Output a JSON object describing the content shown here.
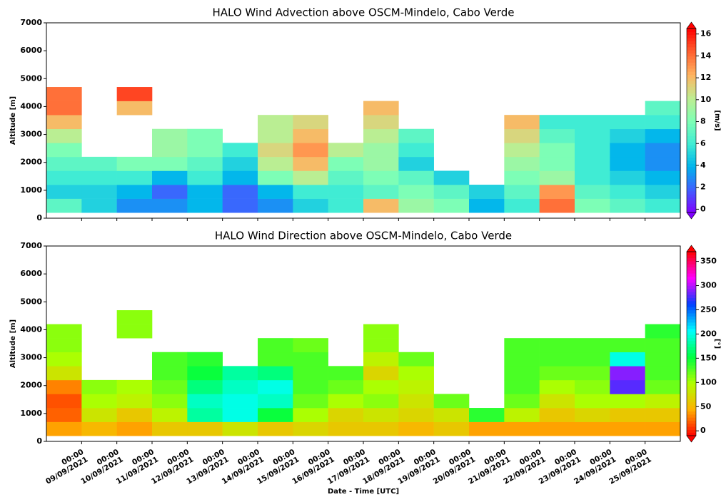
{
  "chart_data": [
    {
      "type": "heatmap",
      "title": "HALO Wind Advection above OSCM-Mindelo, Cabo Verde",
      "ylabel": "Altitude [m]",
      "colorbar_label": "[m/s]",
      "xlim": [
        "2021-09-08T00:00",
        "2021-09-26T00:00"
      ],
      "xticks": [
        "2021-09-09T00:00",
        "2021-09-10T00:00",
        "2021-09-11T00:00",
        "2021-09-12T00:00",
        "2021-09-13T00:00",
        "2021-09-14T00:00",
        "2021-09-15T00:00",
        "2021-09-16T00:00",
        "2021-09-17T00:00",
        "2021-09-18T00:00",
        "2021-09-19T00:00",
        "2021-09-20T00:00",
        "2021-09-21T00:00",
        "2021-09-22T00:00",
        "2021-09-23T00:00",
        "2021-09-24T00:00",
        "2021-09-25T00:00"
      ],
      "ylim": [
        0,
        7000
      ],
      "yticks": [
        0,
        1000,
        2000,
        3000,
        4000,
        5000,
        6000,
        7000
      ],
      "x": [
        "2021-09-08T00:00",
        "2021-09-09T00:00",
        "2021-09-10T00:00",
        "2021-09-11T00:00",
        "2021-09-12T00:00",
        "2021-09-13T00:00",
        "2021-09-14T00:00",
        "2021-09-15T00:00",
        "2021-09-16T00:00",
        "2021-09-17T00:00",
        "2021-09-18T00:00",
        "2021-09-19T00:00",
        "2021-09-20T00:00",
        "2021-09-21T00:00",
        "2021-09-22T00:00",
        "2021-09-23T00:00",
        "2021-09-24T00:00",
        "2021-09-25T00:00",
        "2021-09-26T00:00"
      ],
      "y": [
        200,
        700,
        1200,
        1700,
        2200,
        2700,
        3200,
        3700,
        4200,
        4700
      ],
      "z": [
        [
          7,
          5,
          3,
          3,
          4,
          2,
          3,
          5,
          6,
          12,
          9,
          8,
          4,
          6,
          14,
          8,
          7,
          6
        ],
        [
          5,
          5,
          4,
          2,
          4,
          2,
          4,
          6,
          6,
          7,
          8,
          7,
          5,
          7,
          13,
          7,
          6,
          5
        ],
        [
          6,
          6,
          6,
          4,
          6,
          4,
          8,
          10,
          7,
          8,
          7,
          5,
          null,
          8,
          9,
          6,
          5,
          4
        ],
        [
          7,
          7,
          8,
          8,
          7,
          5,
          10,
          12,
          8,
          9,
          5,
          null,
          null,
          9,
          8,
          6,
          4,
          3
        ],
        [
          8,
          null,
          null,
          9,
          8,
          6,
          11,
          13,
          10,
          9,
          6,
          null,
          null,
          10,
          8,
          6,
          4,
          3
        ],
        [
          10,
          null,
          null,
          9,
          8,
          null,
          10,
          12,
          null,
          10,
          7,
          null,
          null,
          11,
          7,
          6,
          5,
          4
        ],
        [
          12,
          null,
          null,
          null,
          null,
          null,
          10,
          11,
          null,
          11,
          null,
          null,
          null,
          12,
          6,
          6,
          6,
          6
        ],
        [
          14,
          null,
          12,
          null,
          null,
          null,
          null,
          null,
          null,
          12,
          null,
          null,
          null,
          null,
          null,
          null,
          null,
          7
        ],
        [
          14,
          null,
          15,
          null,
          null,
          null,
          null,
          null,
          null,
          null,
          null,
          null,
          null,
          null,
          null,
          null,
          null,
          null
        ]
      ],
      "clim": [
        -0.3,
        16.5
      ],
      "cticks": [
        0,
        2,
        4,
        6,
        8,
        10,
        12,
        14,
        16
      ],
      "colormap": [
        "#8000ff",
        "#3f60ff",
        "#00b4ec",
        "#40ecd4",
        "#80ffb4",
        "#c0ec90",
        "#ffb360",
        "#ff6030",
        "#ff0000"
      ]
    },
    {
      "type": "heatmap",
      "title": "HALO Wind Direction above OSCM-Mindelo, Cabo Verde",
      "ylabel": "Altitude [m]",
      "xlabel": "Date - Time [UTC]",
      "colorbar_label": "[°]",
      "xlim": [
        "2021-09-08T00:00",
        "2021-09-26T00:00"
      ],
      "xticks": [
        {
          "value": "2021-09-09T00:00",
          "label": "00:00\n09/09/2021"
        },
        {
          "value": "2021-09-10T00:00",
          "label": "00:00\n10/09/2021"
        },
        {
          "value": "2021-09-11T00:00",
          "label": "00:00\n11/09/2021"
        },
        {
          "value": "2021-09-12T00:00",
          "label": "00:00\n12/09/2021"
        },
        {
          "value": "2021-09-13T00:00",
          "label": "00:00\n13/09/2021"
        },
        {
          "value": "2021-09-14T00:00",
          "label": "00:00\n14/09/2021"
        },
        {
          "value": "2021-09-15T00:00",
          "label": "00:00\n15/09/2021"
        },
        {
          "value": "2021-09-16T00:00",
          "label": "00:00\n16/09/2021"
        },
        {
          "value": "2021-09-17T00:00",
          "label": "00:00\n17/09/2021"
        },
        {
          "value": "2021-09-18T00:00",
          "label": "00:00\n18/09/2021"
        },
        {
          "value": "2021-09-19T00:00",
          "label": "00:00\n19/09/2021"
        },
        {
          "value": "2021-09-20T00:00",
          "label": "00:00\n20/09/2021"
        },
        {
          "value": "2021-09-21T00:00",
          "label": "00:00\n21/09/2021"
        },
        {
          "value": "2021-09-22T00:00",
          "label": "00:00\n22/09/2021"
        },
        {
          "value": "2021-09-23T00:00",
          "label": "00:00\n23/09/2021"
        },
        {
          "value": "2021-09-24T00:00",
          "label": "00:00\n24/09/2021"
        },
        {
          "value": "2021-09-25T00:00",
          "label": "00:00\n25/09/2021"
        }
      ],
      "ylim": [
        0,
        7000
      ],
      "yticks": [
        0,
        1000,
        2000,
        3000,
        4000,
        5000,
        6000,
        7000
      ],
      "x": [
        "2021-09-08T00:00",
        "2021-09-09T00:00",
        "2021-09-10T00:00",
        "2021-09-11T00:00",
        "2021-09-12T00:00",
        "2021-09-13T00:00",
        "2021-09-14T00:00",
        "2021-09-15T00:00",
        "2021-09-16T00:00",
        "2021-09-17T00:00",
        "2021-09-18T00:00",
        "2021-09-19T00:00",
        "2021-09-20T00:00",
        "2021-09-21T00:00",
        "2021-09-22T00:00",
        "2021-09-23T00:00",
        "2021-09-24T00:00",
        "2021-09-25T00:00",
        "2021-09-26T00:00"
      ],
      "y": [
        200,
        700,
        1200,
        1700,
        2200,
        2700,
        3200,
        3700,
        4200,
        4700
      ],
      "z": [
        [
          40,
          50,
          40,
          60,
          60,
          80,
          60,
          70,
          60,
          60,
          50,
          60,
          40,
          40,
          40,
          40,
          40,
          40
        ],
        [
          20,
          80,
          60,
          90,
          180,
          200,
          150,
          100,
          70,
          80,
          70,
          80,
          140,
          90,
          60,
          70,
          60,
          60
        ],
        [
          15,
          100,
          90,
          110,
          190,
          200,
          190,
          120,
          100,
          110,
          80,
          120,
          null,
          120,
          80,
          100,
          100,
          90
        ],
        [
          30,
          110,
          100,
          120,
          170,
          190,
          200,
          130,
          120,
          100,
          90,
          null,
          null,
          130,
          100,
          110,
          280,
          120
        ],
        [
          80,
          null,
          null,
          130,
          150,
          180,
          170,
          130,
          130,
          70,
          100,
          null,
          null,
          130,
          120,
          120,
          290,
          130
        ],
        [
          100,
          null,
          null,
          130,
          140,
          null,
          130,
          130,
          null,
          90,
          120,
          null,
          null,
          130,
          130,
          130,
          200,
          130
        ],
        [
          110,
          null,
          null,
          null,
          null,
          null,
          130,
          120,
          null,
          110,
          null,
          null,
          null,
          130,
          130,
          130,
          130,
          130
        ],
        [
          110,
          null,
          110,
          null,
          null,
          null,
          null,
          null,
          null,
          110,
          null,
          null,
          null,
          null,
          null,
          null,
          null,
          140
        ],
        [
          null,
          null,
          110,
          null,
          null,
          null,
          null,
          null,
          null,
          null,
          null,
          null,
          null,
          null,
          null,
          null,
          null,
          null
        ]
      ],
      "clim": [
        -10,
        370
      ],
      "cticks": [
        0,
        50,
        100,
        150,
        200,
        250,
        300,
        350
      ],
      "colormap": [
        "#ff0000",
        "#ffb000",
        "#b0ff00",
        "#00ff40",
        "#00ffff",
        "#0040ff",
        "#ff00ff",
        "#ff0000"
      ]
    }
  ]
}
